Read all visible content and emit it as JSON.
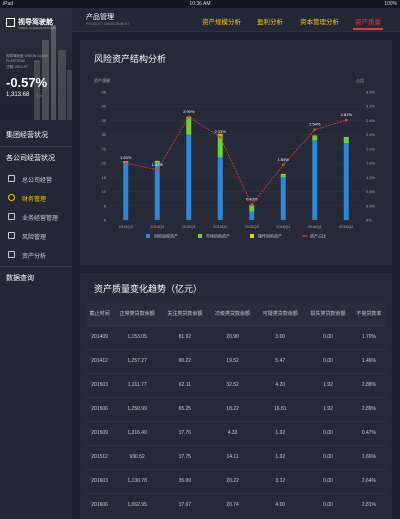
{
  "status": {
    "carrier": "iPad",
    "time": "10:36 AM",
    "battery": "100%"
  },
  "brand": {
    "name": "视导驾驶舱",
    "subtitle": "VISION GUIDE PLATFORM"
  },
  "summary": {
    "line1": "视导驾驶舱 VISION GUIDE",
    "line2": "PLATFORM",
    "line3": "日期: 2014-07",
    "change_pct": "-0.57%",
    "value": "1,313.68",
    "tag": "万元"
  },
  "nav": {
    "group1": "集团经营状况",
    "group2": "各公司经营状况",
    "items": [
      {
        "label": "总公司经营"
      },
      {
        "label": "财务管理"
      },
      {
        "label": "业务经营管理"
      },
      {
        "label": "风险管理"
      },
      {
        "label": "资产分析"
      }
    ],
    "group3": "数据查询"
  },
  "topbar": {
    "title": "产品管理",
    "subtitle": "PRODUCT MANAGEMENT",
    "tabs": [
      "资产规模分析",
      "盈利分析",
      "资本管理分析",
      "资产质量"
    ]
  },
  "chart_data": {
    "type": "bar",
    "title": "风险资产结构分析",
    "categories": [
      "2014Q3",
      "2014Q4",
      "2015Q1",
      "2015Q2",
      "2015Q3",
      "2015Q4",
      "2016Q1",
      "2016Q2"
    ],
    "series": [
      {
        "name": "风险加权资产",
        "values": [
          20.0,
          20.0,
          30.0,
          22.0,
          3.0,
          15.0,
          28.0,
          27.0
        ],
        "color": "#2f86d6"
      },
      {
        "name": "市场风险资产",
        "values": [
          0.5,
          0.6,
          6.0,
          8.0,
          2.0,
          1.0,
          1.5,
          2.0
        ],
        "color": "#6fcf3a"
      },
      {
        "name": "操作风险资产",
        "values": [
          0.2,
          0.2,
          0.3,
          0.3,
          0.2,
          0.2,
          0.2,
          0.2
        ],
        "color": "#f5c518"
      },
      {
        "name": "资产占比",
        "type": "line",
        "values": [
          1.6,
          1.41,
          2.9,
          2.33,
          0.43,
          1.55,
          2.54,
          2.81
        ],
        "color": "#e23c3c"
      }
    ],
    "point_labels": [
      "1.60%",
      "1.41%",
      "2.90%",
      "2.33%",
      "0.43%",
      "1.55%",
      "2.54%",
      "2.81%"
    ],
    "ylabel_left": "资产规模",
    "ylabel_right": "占比",
    "ylim_left": [
      0,
      45
    ],
    "ylim_right": [
      0,
      3.6
    ],
    "yticks_left": [
      "0",
      "5",
      "10",
      "15",
      "20",
      "25",
      "30",
      "35",
      "40",
      "45"
    ],
    "yticks_right": [
      "0%",
      "0.4%",
      "0.8%",
      "1.2%",
      "1.6%",
      "2.0%",
      "2.4%",
      "2.8%",
      "3.2%",
      "3.6%"
    ],
    "legend_placement": "bottom",
    "grid": true
  },
  "table": {
    "title": "资产质量变化趋势（亿元）",
    "columns": [
      "截止时间",
      "正常类贷款余额",
      "关注类贷款余额",
      "次级类贷款余额",
      "可疑类贷款余额",
      "损失类贷款余额",
      "不良贷款率"
    ],
    "rows": [
      [
        "201409",
        "1,153.05",
        "81.92",
        "20.90",
        "3.00",
        "0.00",
        "1.70%"
      ],
      [
        "201412",
        "1,257.27",
        "90.22",
        "19.52",
        "5.47",
        "0.00",
        "1.46%"
      ],
      [
        "201503",
        "1,311.77",
        "62.11",
        "32.52",
        "4.20",
        "1.92",
        "2.88%"
      ],
      [
        "201506",
        "1,250.99",
        "65.25",
        "18.22",
        "16.81",
        "1.92",
        "2.89%"
      ],
      [
        "201509",
        "1,316.40",
        "37.76",
        "4.33",
        "1.92",
        "0.00",
        "0.47%"
      ],
      [
        "201512",
        "930.52",
        "37.75",
        "14.11",
        "1.92",
        "0.00",
        "1.66%"
      ],
      [
        "201603",
        "1,130.78",
        "35.00",
        "20.22",
        "3.12",
        "0.00",
        "2.64%"
      ],
      [
        "201606",
        "1,062.95",
        "37.67",
        "20.74",
        "4.00",
        "0.00",
        "2.81%"
      ]
    ]
  }
}
